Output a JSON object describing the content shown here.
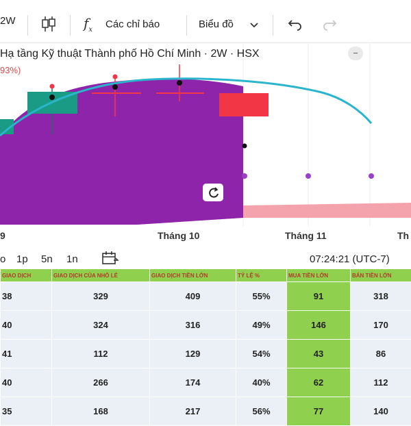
{
  "toolbar": {
    "interval_label": "2W",
    "indicators_label": "Các chỉ báo",
    "chart_type_label": "Biểu đồ"
  },
  "chart": {
    "title": "Hạ tầng Kỹ thuật Thành phố Hồ Chí Minh · 2W · HSX",
    "change_pct": "93%)",
    "x_labels": [
      "9",
      "Tháng 10",
      "Tháng 11",
      "Th"
    ],
    "colors": {
      "area": "#8e24aa",
      "up_candle": "#199b86",
      "down_candle": "#f23645",
      "curve": "#2bb5cc",
      "band": "#f4a3ad"
    }
  },
  "controls": {
    "ranges": [
      "o",
      "1p",
      "5n",
      "1n"
    ],
    "time": "07:24:21 (UTC-7)"
  },
  "table": {
    "headers": [
      "GIAO DỊCH",
      "GIAO DỊCH CỦA NHỎ LẺ",
      "GIAO DỊCH TIỀN LỚN",
      "TỶ LỆ %",
      "MUA TIỀN LỚN",
      "BÁN TIỀN LỚN"
    ],
    "rows": [
      [
        "38",
        "329",
        "409",
        "55%",
        "91",
        "318"
      ],
      [
        "40",
        "324",
        "316",
        "49%",
        "146",
        "170"
      ],
      [
        "41",
        "112",
        "129",
        "54%",
        "43",
        "86"
      ],
      [
        "40",
        "266",
        "174",
        "40%",
        "62",
        "112"
      ],
      [
        "35",
        "168",
        "217",
        "56%",
        "77",
        "140"
      ]
    ]
  }
}
